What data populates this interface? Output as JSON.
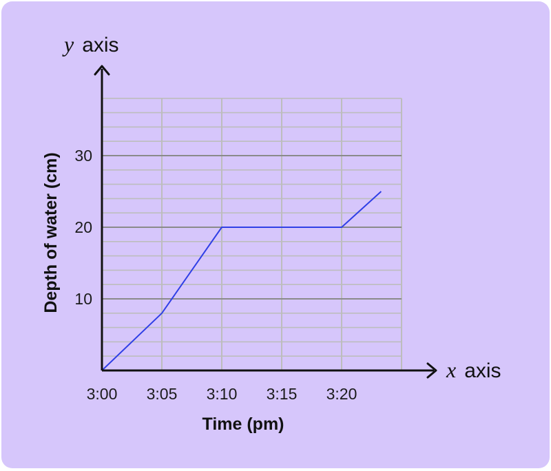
{
  "chart_data": {
    "type": "line",
    "xlabel": "Time (pm)",
    "ylabel": "Depth of water (cm)",
    "x_axis_name": {
      "var": "x",
      "word": "axis"
    },
    "y_axis_name": {
      "var": "y",
      "word": "axis"
    },
    "x_categories": [
      "3:00",
      "3:05",
      "3:10",
      "3:15",
      "3:20"
    ],
    "x_minutes": [
      0,
      5,
      10,
      15,
      20
    ],
    "y_ticks": [
      10,
      20,
      30
    ],
    "xlim": [
      0,
      25
    ],
    "ylim": [
      0,
      38
    ],
    "grid": true,
    "series": [
      {
        "x": [
          0,
          5,
          10,
          15,
          20,
          23.3
        ],
        "y": [
          0,
          8,
          20,
          20,
          20,
          25
        ]
      }
    ],
    "colors": {
      "line": "#2f3fe6",
      "grid_minor": "#bdbdbd",
      "grid_major": "#8a8a8a",
      "axis": "#111111",
      "background": "#d6c6fb"
    }
  }
}
